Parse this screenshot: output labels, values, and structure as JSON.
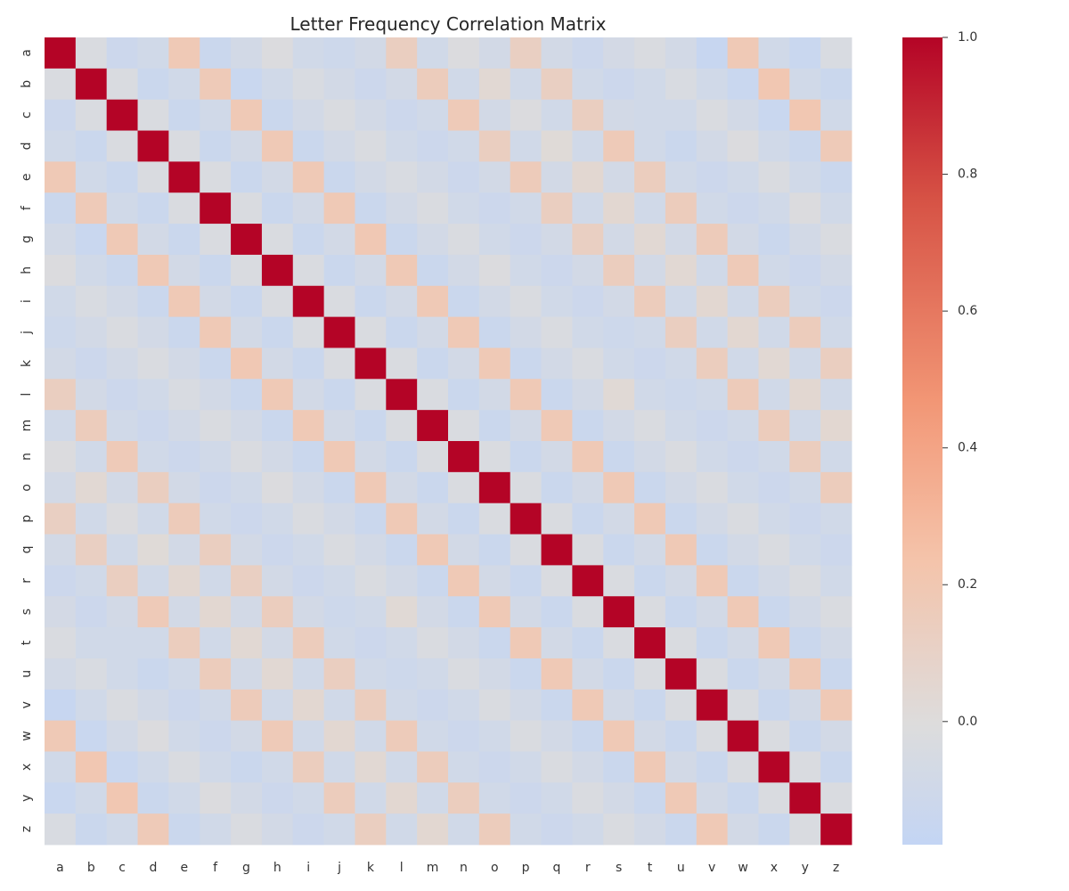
{
  "chart_data": {
    "type": "heatmap",
    "title": "Letter Frequency Correlation Matrix",
    "xlabel": "",
    "ylabel": "",
    "x_labels": [
      "a",
      "b",
      "c",
      "d",
      "e",
      "f",
      "g",
      "h",
      "i",
      "j",
      "k",
      "l",
      "m",
      "n",
      "o",
      "p",
      "q",
      "r",
      "s",
      "t",
      "u",
      "v",
      "w",
      "x",
      "y",
      "z"
    ],
    "y_labels": [
      "a",
      "b",
      "c",
      "d",
      "e",
      "f",
      "g",
      "h",
      "i",
      "j",
      "k",
      "l",
      "m",
      "n",
      "o",
      "p",
      "q",
      "r",
      "s",
      "t",
      "u",
      "v",
      "w",
      "x",
      "y",
      "z"
    ],
    "values": [
      [
        1.0,
        -0.03,
        -0.12,
        -0.09,
        0.18,
        -0.13,
        -0.08,
        -0.02,
        -0.09,
        -0.11,
        -0.08,
        0.13,
        -0.09,
        -0.02,
        -0.08,
        0.12,
        -0.08,
        -0.12,
        -0.07,
        -0.03,
        -0.08,
        -0.15,
        0.18,
        -0.09,
        -0.14,
        -0.04
      ],
      [
        -0.03,
        1.0,
        -0.03,
        -0.13,
        -0.09,
        0.17,
        -0.14,
        -0.09,
        -0.04,
        -0.08,
        -0.12,
        -0.08,
        0.15,
        -0.09,
        0.04,
        -0.09,
        0.12,
        -0.09,
        -0.12,
        -0.09,
        -0.04,
        -0.09,
        -0.14,
        0.2,
        -0.09,
        -0.13
      ],
      [
        -0.12,
        -0.03,
        1.0,
        -0.03,
        -0.13,
        -0.09,
        0.18,
        -0.13,
        -0.08,
        -0.03,
        -0.08,
        -0.12,
        -0.09,
        0.17,
        -0.08,
        -0.02,
        -0.09,
        0.13,
        -0.08,
        -0.09,
        -0.09,
        -0.03,
        -0.08,
        -0.14,
        0.2,
        -0.09
      ],
      [
        -0.09,
        -0.13,
        -0.03,
        1.0,
        -0.03,
        -0.13,
        -0.08,
        0.18,
        -0.13,
        -0.08,
        -0.03,
        -0.09,
        -0.12,
        -0.09,
        0.13,
        -0.09,
        0.02,
        -0.09,
        0.17,
        -0.09,
        -0.13,
        -0.08,
        -0.02,
        -0.09,
        -0.13,
        0.17
      ],
      [
        0.18,
        -0.09,
        -0.13,
        -0.03,
        1.0,
        -0.03,
        -0.13,
        -0.08,
        0.18,
        -0.13,
        -0.08,
        -0.04,
        -0.08,
        -0.12,
        -0.08,
        0.16,
        -0.08,
        0.05,
        -0.08,
        0.14,
        -0.09,
        -0.12,
        -0.09,
        -0.03,
        -0.09,
        -0.13
      ],
      [
        -0.13,
        0.17,
        -0.09,
        -0.13,
        -0.03,
        1.0,
        -0.03,
        -0.13,
        -0.08,
        0.18,
        -0.13,
        -0.08,
        -0.03,
        -0.09,
        -0.12,
        -0.09,
        0.13,
        -0.09,
        0.05,
        -0.09,
        0.15,
        -0.09,
        -0.12,
        -0.09,
        -0.02,
        -0.09
      ],
      [
        -0.08,
        -0.14,
        0.18,
        -0.08,
        -0.13,
        -0.03,
        1.0,
        -0.03,
        -0.13,
        -0.08,
        0.19,
        -0.13,
        -0.08,
        -0.03,
        -0.09,
        -0.12,
        -0.08,
        0.12,
        -0.08,
        0.04,
        -0.08,
        0.16,
        -0.08,
        -0.13,
        -0.08,
        -0.03
      ],
      [
        -0.02,
        -0.09,
        -0.13,
        0.18,
        -0.08,
        -0.13,
        -0.03,
        1.0,
        -0.03,
        -0.13,
        -0.08,
        0.18,
        -0.13,
        -0.08,
        -0.02,
        -0.09,
        -0.12,
        -0.08,
        0.14,
        -0.08,
        0.04,
        -0.09,
        0.17,
        -0.09,
        -0.12,
        -0.08
      ],
      [
        -0.09,
        -0.04,
        -0.08,
        -0.13,
        0.18,
        -0.08,
        -0.13,
        -0.03,
        1.0,
        -0.03,
        -0.13,
        -0.08,
        0.18,
        -0.13,
        -0.08,
        -0.03,
        -0.09,
        -0.12,
        -0.08,
        0.15,
        -0.09,
        0.05,
        -0.09,
        0.14,
        -0.09,
        -0.12
      ],
      [
        -0.11,
        -0.08,
        -0.03,
        -0.08,
        -0.13,
        0.18,
        -0.08,
        -0.13,
        -0.03,
        1.0,
        -0.03,
        -0.13,
        -0.08,
        0.18,
        -0.13,
        -0.08,
        -0.03,
        -0.09,
        -0.11,
        -0.09,
        0.13,
        -0.09,
        0.05,
        -0.09,
        0.15,
        -0.09
      ],
      [
        -0.08,
        -0.12,
        -0.08,
        -0.03,
        -0.08,
        -0.13,
        0.19,
        -0.08,
        -0.13,
        -0.03,
        1.0,
        -0.03,
        -0.13,
        -0.08,
        0.18,
        -0.13,
        -0.08,
        -0.03,
        -0.09,
        -0.12,
        -0.09,
        0.14,
        -0.09,
        0.04,
        -0.09,
        0.13
      ],
      [
        0.13,
        -0.08,
        -0.12,
        -0.09,
        -0.04,
        -0.08,
        -0.13,
        0.18,
        -0.08,
        -0.13,
        -0.03,
        1.0,
        -0.03,
        -0.13,
        -0.08,
        0.18,
        -0.13,
        -0.08,
        0.03,
        -0.09,
        -0.11,
        -0.09,
        0.16,
        -0.09,
        0.05,
        -0.09
      ],
      [
        -0.09,
        0.15,
        -0.09,
        -0.12,
        -0.08,
        -0.03,
        -0.08,
        -0.13,
        0.18,
        -0.08,
        -0.13,
        -0.03,
        1.0,
        -0.03,
        -0.13,
        -0.08,
        0.18,
        -0.13,
        -0.08,
        -0.03,
        -0.09,
        -0.12,
        -0.09,
        0.15,
        -0.09,
        0.05
      ],
      [
        -0.02,
        -0.09,
        0.17,
        -0.09,
        -0.12,
        -0.09,
        -0.03,
        -0.08,
        -0.13,
        0.18,
        -0.08,
        -0.13,
        -0.03,
        1.0,
        -0.03,
        -0.13,
        -0.08,
        0.18,
        -0.13,
        -0.08,
        -0.03,
        -0.09,
        -0.12,
        -0.09,
        0.14,
        -0.09
      ],
      [
        -0.08,
        0.04,
        -0.08,
        0.13,
        -0.08,
        -0.12,
        -0.09,
        -0.02,
        -0.08,
        -0.13,
        0.18,
        -0.08,
        -0.13,
        -0.03,
        1.0,
        -0.03,
        -0.13,
        -0.08,
        0.18,
        -0.13,
        -0.08,
        -0.03,
        -0.09,
        -0.12,
        -0.09,
        0.15
      ],
      [
        0.12,
        -0.09,
        -0.02,
        -0.09,
        0.16,
        -0.09,
        -0.12,
        -0.09,
        -0.03,
        -0.08,
        -0.13,
        0.18,
        -0.08,
        -0.13,
        -0.03,
        1.0,
        -0.03,
        -0.13,
        -0.08,
        0.18,
        -0.13,
        -0.08,
        -0.03,
        -0.09,
        -0.12,
        -0.09
      ],
      [
        -0.08,
        0.12,
        -0.09,
        0.02,
        -0.08,
        0.13,
        -0.08,
        -0.12,
        -0.09,
        -0.03,
        -0.08,
        -0.13,
        0.18,
        -0.08,
        -0.13,
        -0.03,
        1.0,
        -0.03,
        -0.13,
        -0.08,
        0.18,
        -0.13,
        -0.08,
        -0.03,
        -0.09,
        -0.12
      ],
      [
        -0.12,
        -0.09,
        0.13,
        -0.09,
        0.05,
        -0.09,
        0.12,
        -0.08,
        -0.12,
        -0.09,
        -0.03,
        -0.08,
        -0.13,
        0.18,
        -0.08,
        -0.13,
        -0.03,
        1.0,
        -0.03,
        -0.13,
        -0.08,
        0.18,
        -0.13,
        -0.08,
        -0.03,
        -0.09
      ],
      [
        -0.07,
        -0.12,
        -0.08,
        0.17,
        -0.08,
        0.05,
        -0.08,
        0.14,
        -0.08,
        -0.11,
        -0.09,
        0.03,
        -0.08,
        -0.13,
        0.18,
        -0.08,
        -0.13,
        -0.03,
        1.0,
        -0.03,
        -0.13,
        -0.08,
        0.18,
        -0.13,
        -0.08,
        -0.03
      ],
      [
        -0.03,
        -0.09,
        -0.09,
        -0.09,
        0.14,
        -0.09,
        0.04,
        -0.08,
        0.15,
        -0.09,
        -0.12,
        -0.09,
        -0.03,
        -0.08,
        -0.13,
        0.18,
        -0.08,
        -0.13,
        -0.03,
        1.0,
        -0.03,
        -0.13,
        -0.08,
        0.18,
        -0.13,
        -0.08
      ],
      [
        -0.08,
        -0.04,
        -0.09,
        -0.13,
        -0.09,
        0.15,
        -0.08,
        0.04,
        -0.09,
        0.13,
        -0.09,
        -0.11,
        -0.09,
        -0.03,
        -0.08,
        -0.13,
        0.18,
        -0.08,
        -0.13,
        -0.03,
        1.0,
        -0.03,
        -0.13,
        -0.08,
        0.18,
        -0.13
      ],
      [
        -0.15,
        -0.09,
        -0.03,
        -0.08,
        -0.12,
        -0.09,
        0.16,
        -0.09,
        0.05,
        -0.09,
        0.14,
        -0.09,
        -0.12,
        -0.09,
        -0.03,
        -0.08,
        -0.13,
        0.18,
        -0.08,
        -0.13,
        -0.03,
        1.0,
        -0.03,
        -0.13,
        -0.08,
        0.18
      ],
      [
        0.18,
        -0.14,
        -0.08,
        -0.02,
        -0.09,
        -0.12,
        -0.08,
        0.17,
        -0.09,
        0.05,
        -0.09,
        0.16,
        -0.09,
        -0.12,
        -0.09,
        -0.03,
        -0.08,
        -0.13,
        0.18,
        -0.08,
        -0.13,
        -0.03,
        1.0,
        -0.03,
        -0.13,
        -0.08
      ],
      [
        -0.09,
        0.2,
        -0.14,
        -0.09,
        -0.03,
        -0.09,
        -0.13,
        -0.09,
        0.14,
        -0.09,
        0.04,
        -0.09,
        0.15,
        -0.09,
        -0.12,
        -0.09,
        -0.03,
        -0.08,
        -0.13,
        0.18,
        -0.08,
        -0.13,
        -0.03,
        1.0,
        -0.03,
        -0.13
      ],
      [
        -0.14,
        -0.09,
        0.2,
        -0.13,
        -0.09,
        -0.02,
        -0.08,
        -0.12,
        -0.09,
        0.15,
        -0.09,
        0.05,
        -0.09,
        0.14,
        -0.09,
        -0.12,
        -0.09,
        -0.03,
        -0.08,
        -0.13,
        0.18,
        -0.08,
        -0.13,
        -0.03,
        1.0,
        -0.03
      ],
      [
        -0.04,
        -0.13,
        -0.09,
        0.17,
        -0.13,
        -0.09,
        -0.03,
        -0.08,
        -0.12,
        -0.09,
        0.13,
        -0.09,
        0.05,
        -0.09,
        0.15,
        -0.09,
        -0.12,
        -0.09,
        -0.03,
        -0.08,
        -0.13,
        0.18,
        -0.08,
        -0.13,
        -0.03,
        1.0
      ]
    ],
    "colorbar": {
      "min": -0.18,
      "max": 1.0,
      "ticks": [
        0.0,
        0.2,
        0.4,
        0.6,
        0.8,
        1.0
      ],
      "tick_labels": [
        "0.0",
        "0.2",
        "0.4",
        "0.6",
        "0.8",
        "1.0"
      ],
      "colormap": "coolwarm",
      "center": 0.0
    },
    "grid": false,
    "colors": {
      "low": "#c3d5f4",
      "mid": "#dddcdc",
      "high": "#b40426"
    }
  }
}
